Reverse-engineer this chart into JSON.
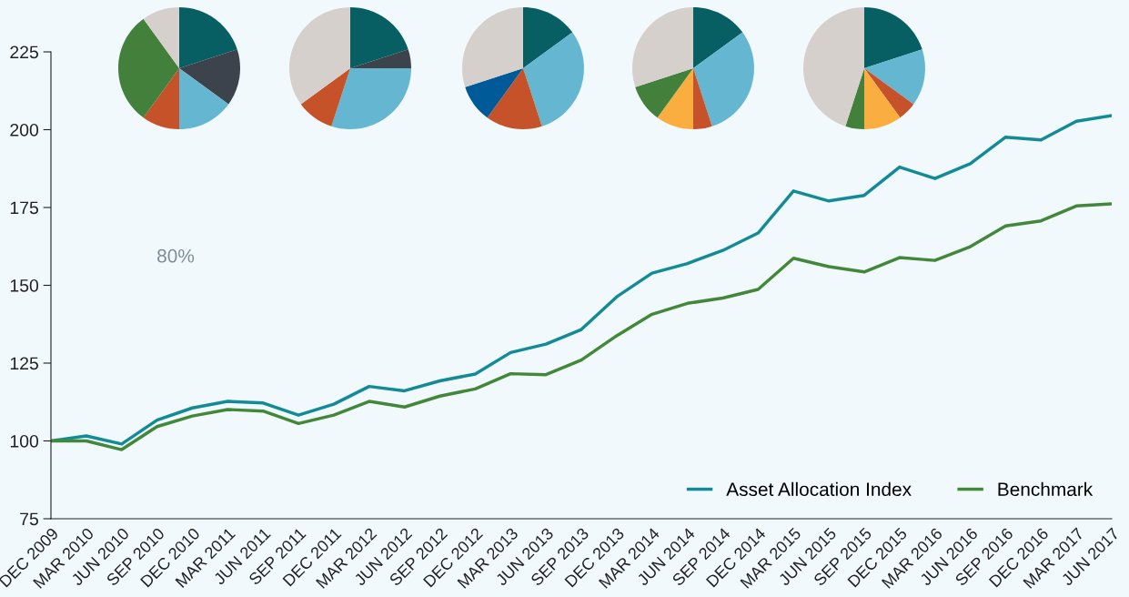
{
  "chart_data": [
    {
      "type": "line",
      "categories": [
        "DEC 2009",
        "MAR 2010",
        "JUN 2010",
        "SEP 2010",
        "DEC 2010",
        "MAR 2011",
        "JUN 2011",
        "SEP 2011",
        "DEC 2011",
        "MAR 2012",
        "JUN 2012",
        "SEP 2012",
        "DEC 2012",
        "MAR 2013",
        "JUN 2013",
        "SEP 2013",
        "DEC 2013",
        "MAR 2014",
        "JUN 2014",
        "SEP 2014",
        "DEC 2014",
        "MAR 2015",
        "JUN 2015",
        "SEP 2015",
        "DEC 2015",
        "MAR 2016",
        "JUN 2016",
        "SEP 2016",
        "DEC 2016",
        "MAR 2017",
        "JUN 2017"
      ],
      "series": [
        {
          "name": "Asset Allocation Index",
          "color": "#138b97",
          "values": [
            100,
            101.6,
            99.0,
            106.7,
            110.6,
            112.7,
            112.2,
            108.3,
            111.8,
            117.5,
            116.1,
            119.3,
            121.5,
            128.4,
            131.1,
            135.8,
            146.3,
            153.9,
            157.0,
            161.2,
            166.8,
            180.3,
            177.1,
            178.9,
            188.0,
            184.3,
            189.1,
            197.6,
            196.7,
            202.7,
            204.5
          ]
        },
        {
          "name": "Benchmark",
          "color": "#43883a",
          "values": [
            100,
            100,
            97.2,
            104.6,
            108.0,
            110.1,
            109.6,
            105.6,
            108.3,
            112.7,
            110.9,
            114.4,
            116.7,
            121.6,
            121.3,
            126.0,
            133.8,
            140.7,
            144.2,
            145.9,
            148.7,
            158.7,
            156.0,
            154.3,
            158.9,
            158.0,
            162.4,
            169.1,
            170.7,
            175.5,
            176.2
          ]
        }
      ],
      "ylim": [
        75,
        225
      ],
      "yticks": [
        75,
        100,
        125,
        150,
        175,
        200,
        225
      ],
      "grid": false,
      "legend": "bottom right",
      "marker": "none",
      "line_style": "solid",
      "annotations": [
        "80%"
      ]
    },
    {
      "type": "pie",
      "categories": [
        null,
        null,
        null,
        null,
        null,
        null
      ],
      "values": [
        20,
        15,
        15,
        10,
        30,
        10
      ],
      "colors": [
        "#075f63",
        "#3d434d",
        "#65b6d0",
        "#c55228",
        "#43803c",
        "#d5d0cb"
      ]
    },
    {
      "type": "pie",
      "categories": [
        null,
        null,
        null,
        null,
        null
      ],
      "values": [
        20,
        5,
        30,
        10,
        35
      ],
      "colors": [
        "#075f63",
        "#3d434d",
        "#65b6d0",
        "#c55228",
        "#d5d0cb"
      ]
    },
    {
      "type": "pie",
      "categories": [
        null,
        null,
        null,
        null,
        null
      ],
      "values": [
        15,
        30,
        15,
        10,
        30
      ],
      "colors": [
        "#075f63",
        "#65b6d0",
        "#c55228",
        "#005a97",
        "#d5d0cb"
      ]
    },
    {
      "type": "pie",
      "categories": [
        null,
        null,
        null,
        null,
        null,
        null
      ],
      "values": [
        15,
        30,
        5,
        10,
        10,
        30
      ],
      "colors": [
        "#075f63",
        "#65b6d0",
        "#c55228",
        "#fbae40",
        "#43803c",
        "#d5d0cb"
      ]
    },
    {
      "type": "pie",
      "categories": [
        null,
        null,
        null,
        null,
        null,
        null
      ],
      "values": [
        20,
        15,
        5,
        10,
        5,
        45
      ],
      "colors": [
        "#075f63",
        "#65b6d0",
        "#c55228",
        "#fbae40",
        "#43803c",
        "#d5d0cb"
      ]
    }
  ]
}
